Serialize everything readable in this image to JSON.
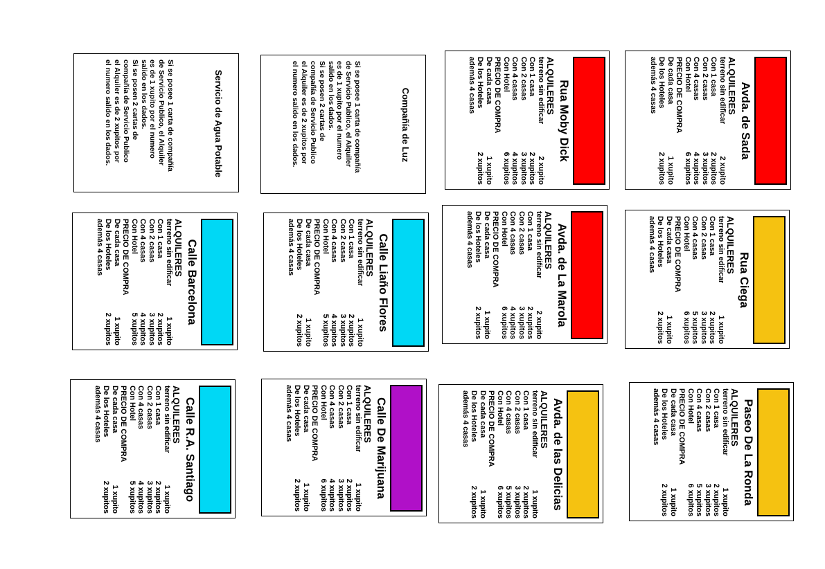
{
  "header": "ALQUILERES",
  "property_cards": [
    {
      "title": "Avda. de Sada",
      "color": "#ff0000",
      "rows": [
        [
          "terreno sin edificar",
          "2 xupito"
        ],
        [
          "Con 1 casa",
          "2 xupitos"
        ],
        [
          "Con 2 casas",
          "3 xupitos"
        ],
        [
          "Con 4 casas",
          "4 xupitos"
        ],
        [
          "Con Hotel",
          "6 xupitos"
        ]
      ],
      "buy_label": "PRECIO DE COMPRA",
      "buy_rows": [
        [
          "De cada casa",
          "1 xupito"
        ],
        [
          "De los Hoteles",
          "2 xupitos"
        ]
      ],
      "footer": "además 4 casas"
    },
    {
      "title": "Rua Moby Dick",
      "color": "#ff0000",
      "rows": [
        [
          "terreno sin edificar",
          "2 xupito"
        ],
        [
          "Con 1 casa",
          "2 xupitos"
        ],
        [
          "Con 2 casas",
          "3 xupitos"
        ],
        [
          "Con 4 casas",
          "4 xupitos"
        ],
        [
          "Con Hotel",
          "6 xupitos"
        ]
      ],
      "buy_label": "PRECIO DE COMPRA",
      "buy_rows": [
        [
          "De cada casa",
          "1 xupito"
        ],
        [
          "De los Hoteles",
          "2 xupitos"
        ]
      ],
      "footer": "además 4 casas"
    },
    {
      "title": "Rua Ciega",
      "color": "#f5c211",
      "rows": [
        [
          "terreno sin edificar",
          "1 xupito"
        ],
        [
          "Con 1 casa",
          "2 xupitos"
        ],
        [
          "Con 2 casas",
          "3 xupitos"
        ],
        [
          "Con 4 casas",
          "5 xupitos"
        ],
        [
          "Con Hotel",
          "6 xupitos"
        ]
      ],
      "buy_label": "PRECIO DE COMPRA",
      "buy_rows": [
        [
          "De cada casa",
          "1 xupito"
        ],
        [
          "De los Hoteles",
          "2 xupitos"
        ]
      ],
      "footer": "además 4 casas"
    },
    {
      "title": "Avda. de La Marola",
      "color": "#ff0000",
      "rows": [
        [
          "terreno sin edificar",
          "2 xupito"
        ],
        [
          "Con 1 casa",
          "2 xupitos"
        ],
        [
          "Con 2 casas",
          "3 xupitos"
        ],
        [
          "Con 4 casas",
          "4 xupitos"
        ],
        [
          "Con Hotel",
          "6 xupitos"
        ]
      ],
      "buy_label": "PRECIO DE COMPRA",
      "buy_rows": [
        [
          "De cada casa",
          "1 xupito"
        ],
        [
          "De los Hoteles",
          "2 xupitos"
        ]
      ],
      "footer": "además 4 casas"
    },
    {
      "title": "Calle Liaño Flores",
      "color": "#00d8f5",
      "rows": [
        [
          "terreno sin edificar",
          "1 xupito"
        ],
        [
          "Con 1 casa",
          "2 xupitos"
        ],
        [
          "Con 2 casas",
          "3 xupitos"
        ],
        [
          "Con 4 casas",
          "4 xupitos"
        ],
        [
          "Con Hotel",
          "5 xupitos"
        ]
      ],
      "buy_label": "PRECIO DE COMPRA",
      "buy_rows": [
        [
          "De cada casa",
          "1 xupito"
        ],
        [
          "De los Hoteles",
          "2 xupitos"
        ]
      ],
      "footer": "además 4 casas"
    },
    {
      "title": "Calle Barcelona",
      "color": "#00d8f5",
      "rows": [
        [
          "terreno sin edificar",
          "1 xupito"
        ],
        [
          "Con 1 casa",
          "2 xupitos"
        ],
        [
          "Con 2 casas",
          "3 xupitos"
        ],
        [
          "Con 4 casas",
          "4 xupitos"
        ],
        [
          "Con Hotel",
          "5 xupitos"
        ]
      ],
      "buy_label": "PRECIO DE COMPRA",
      "buy_rows": [
        [
          "De cada casa",
          "1 xupito"
        ],
        [
          "De los Hoteles",
          "2 xupitos"
        ]
      ],
      "footer": "además 4 casas"
    },
    {
      "title": "Paseo De La Ronda",
      "color": "#f5c211",
      "rows": [
        [
          "terreno sin edificar",
          "1 xupito"
        ],
        [
          "Con 1 casa",
          "2 xupitos"
        ],
        [
          "Con 2 casas",
          "3 xupitos"
        ],
        [
          "Con 4 casas",
          "5 xupitos"
        ],
        [
          "Con Hotel",
          "6 xupitos"
        ]
      ],
      "buy_label": "PRECIO DE COMPRA",
      "buy_rows": [
        [
          "De cada casa",
          "1 xupito"
        ],
        [
          "De los Hoteles",
          "2 xupitos"
        ]
      ],
      "footer": "además 4 casas"
    },
    {
      "title": "Avda. de las Delicias",
      "color": "#f5c211",
      "rows": [
        [
          "terreno sin edificar",
          "1 xupito"
        ],
        [
          "Con 1 casa",
          "2 xupitos"
        ],
        [
          "Con 2 casas",
          "3 xupitos"
        ],
        [
          "Con 4 casas",
          "5 xupitos"
        ],
        [
          "Con Hotel",
          "6 xupitos"
        ]
      ],
      "buy_label": "PRECIO DE COMPRA",
      "buy_rows": [
        [
          "De cada casa",
          "1 xupito"
        ],
        [
          "De los Hoteles",
          "2 xupitos"
        ]
      ],
      "footer": "además 4 casas"
    },
    {
      "title": "Calle De Marijuana",
      "color": "#b010c8",
      "rows": [
        [
          "terreno sin edificar",
          "1 xupito"
        ],
        [
          "Con 1 casa",
          "2 xupitos"
        ],
        [
          "Con 2 casas",
          "3 xupitos"
        ],
        [
          "Con 4 casas",
          "4 xupitos"
        ],
        [
          "Con Hotel",
          "6 xupitos"
        ]
      ],
      "buy_label": "PRECIO DE COMPRA",
      "buy_rows": [
        [
          "De cada casa",
          "1 xupito"
        ],
        [
          "De los Hoteles",
          "2 xupitos"
        ]
      ],
      "footer": "además 4 casas"
    },
    {
      "title": "Calle R.A. Santiago",
      "color": "#00d8f5",
      "rows": [
        [
          "terreno sin edificar",
          "1 xupito"
        ],
        [
          "Con 1 casa",
          "2 xupitos"
        ],
        [
          "Con 2 casas",
          "3 xupitos"
        ],
        [
          "Con 4 casas",
          "4 xupitos"
        ],
        [
          "Con Hotel",
          "5 xupitos"
        ]
      ],
      "buy_label": "PRECIO DE COMPRA",
      "buy_rows": [
        [
          "De cada casa",
          "1 xupito"
        ],
        [
          "De los Hoteles",
          "2 xupitos"
        ]
      ],
      "footer": "además 4 casas"
    }
  ],
  "service_cards": [
    {
      "title": "Compañía de Luz",
      "lines": [
        "Si se posee 1 carta de compañía",
        "de Servicio Publico, el Alquiler",
        "es de 1 xupito por el numero",
        "salido en los dados.",
        "Si se posen 2 cartas de",
        "compañía de Servicio Publico",
        "el Alquiler es de 2 xupitos por",
        "el numero salido en los dados."
      ]
    },
    {
      "title": "Servicio de Agua Potable",
      "lines": [
        "Si se posee 1 carta de compañía",
        "de Servicio Publico, el Alquiler",
        "es de 1 xupito por el numero",
        "salido en los dados.",
        "Si se posen 2 cartas de",
        "compañía de Servicio Publico",
        "el Alquiler es de 2 xupitos por",
        "el numero salido en los dados."
      ]
    }
  ]
}
